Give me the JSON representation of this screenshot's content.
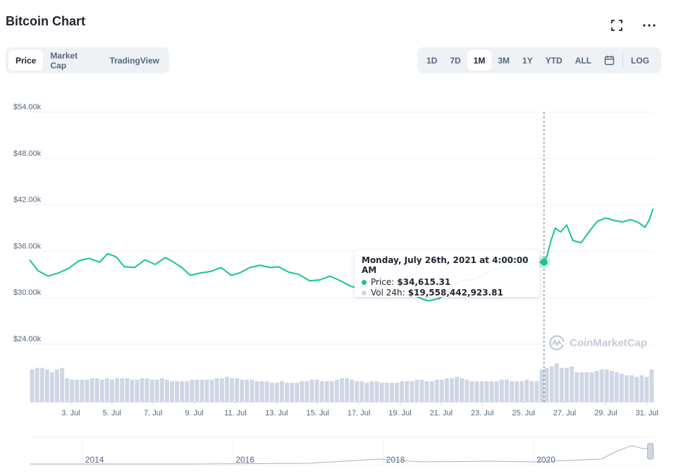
{
  "title": "Bitcoin Chart",
  "tabs": [
    "Price",
    "Market Cap",
    "TradingView"
  ],
  "active_tab": "Price",
  "ranges": [
    "1D",
    "7D",
    "1M",
    "3M",
    "1Y",
    "YTD",
    "ALL"
  ],
  "active_range": "1M",
  "log_label": "LOG",
  "icons": {
    "fullscreen": "fullscreen-icon",
    "more": "more-icon",
    "calendar": "calendar-icon"
  },
  "colors": {
    "line": "#16c784",
    "volume": "#cfd6e4",
    "grid": "#eff2f5",
    "text": "#58667e"
  },
  "tooltip": {
    "date": "Monday, July 26th, 2021 at 4:00:00 AM",
    "price_label": "Price:",
    "price_value": "$34,615.31",
    "vol_label": "Vol 24h:",
    "vol_value": "$19,558,442,923.81"
  },
  "watermark": "CoinMarketCap",
  "chart_data": {
    "type": "line",
    "title": "Bitcoin Chart",
    "ylim": [
      24000,
      54000
    ],
    "yticks": [
      "$54.00k",
      "$48.00k",
      "$42.00k",
      "$36.00k",
      "$30.00k",
      "$24.00k"
    ],
    "ytick_values": [
      54000,
      48000,
      42000,
      36000,
      30000,
      24000
    ],
    "xlim": [
      1.0,
      31.35
    ],
    "xticks": [
      "3. Jul",
      "5. Jul",
      "7. Jul",
      "9. Jul",
      "11. Jul",
      "13. Jul",
      "15. Jul",
      "17. Jul",
      "19. Jul",
      "21. Jul",
      "23. Jul",
      "25. Jul",
      "27. Jul",
      "29. Jul",
      "31. Jul"
    ],
    "xtick_values": [
      3,
      5,
      7,
      9,
      11,
      13,
      15,
      17,
      19,
      21,
      23,
      25,
      27,
      29,
      31
    ],
    "price": {
      "x": [
        1.0,
        1.4,
        1.9,
        2.4,
        2.9,
        3.4,
        3.9,
        4.4,
        4.8,
        5.2,
        5.6,
        6.1,
        6.6,
        7.1,
        7.6,
        8.0,
        8.4,
        8.8,
        9.3,
        9.8,
        10.3,
        10.8,
        11.2,
        11.7,
        12.2,
        12.7,
        13.1,
        13.6,
        14.1,
        14.6,
        15.1,
        15.6,
        16.1,
        16.6,
        17.0,
        17.4,
        17.9,
        18.4,
        18.9,
        19.4,
        19.8,
        20.1,
        20.4,
        20.9,
        21.3,
        21.6,
        21.9,
        22.4,
        22.9,
        23.4,
        23.9,
        24.4,
        24.9,
        25.4,
        25.8,
        26.0,
        26.15,
        26.35,
        26.55,
        26.8,
        27.1,
        27.4,
        27.8,
        28.2,
        28.6,
        29.0,
        29.4,
        29.8,
        30.2,
        30.6,
        30.9,
        31.1,
        31.3
      ],
      "y": [
        34900,
        33500,
        32800,
        33200,
        33800,
        34800,
        35100,
        34600,
        35700,
        35300,
        34000,
        33900,
        34900,
        34300,
        35200,
        34600,
        33900,
        32900,
        33200,
        33400,
        33900,
        32900,
        33200,
        33900,
        34200,
        33900,
        34000,
        33300,
        33000,
        32200,
        32300,
        32800,
        32200,
        31500,
        31200,
        31500,
        31900,
        31700,
        30900,
        30800,
        30200,
        29800,
        29600,
        29900,
        30800,
        31500,
        32200,
        32300,
        32700,
        33500,
        33800,
        34200,
        34200,
        34400,
        34600,
        34615,
        35500,
        37500,
        39000,
        38500,
        39400,
        37400,
        37100,
        38600,
        39900,
        40300,
        40000,
        39800,
        40100,
        39700,
        39100,
        40000,
        41500
      ]
    },
    "volume": {
      "values": [
        22,
        23,
        23,
        22,
        20,
        22,
        23,
        16,
        15,
        15,
        15,
        15,
        16,
        16,
        15,
        16,
        15,
        16,
        16,
        16,
        15,
        15,
        16,
        16,
        15,
        15,
        16,
        15,
        14,
        14,
        14,
        14,
        15,
        15,
        15,
        15,
        15,
        16,
        16,
        17,
        16,
        16,
        15,
        15,
        15,
        14,
        14,
        14,
        13,
        13,
        14,
        13,
        13,
        13,
        14,
        14,
        15,
        15,
        14,
        14,
        14,
        15,
        16,
        16,
        15,
        14,
        14,
        13,
        14,
        14,
        13,
        13,
        13,
        13,
        14,
        14,
        14,
        15,
        15,
        14,
        14,
        15,
        15,
        16,
        16,
        17,
        16,
        15,
        14,
        14,
        14,
        14,
        14,
        14,
        15,
        15,
        14,
        14,
        14,
        15,
        14,
        14,
        22,
        23,
        24,
        26,
        23,
        23,
        24,
        20,
        20,
        20,
        20,
        21,
        22,
        22,
        21,
        20,
        19,
        18,
        18,
        17,
        18,
        17,
        22
      ]
    },
    "navigator": {
      "labels": [
        "2014",
        "2016",
        "2018",
        "2020"
      ],
      "label_years": [
        2014,
        2016,
        2018,
        2020
      ],
      "range": [
        2013.3,
        2021.6
      ]
    }
  }
}
